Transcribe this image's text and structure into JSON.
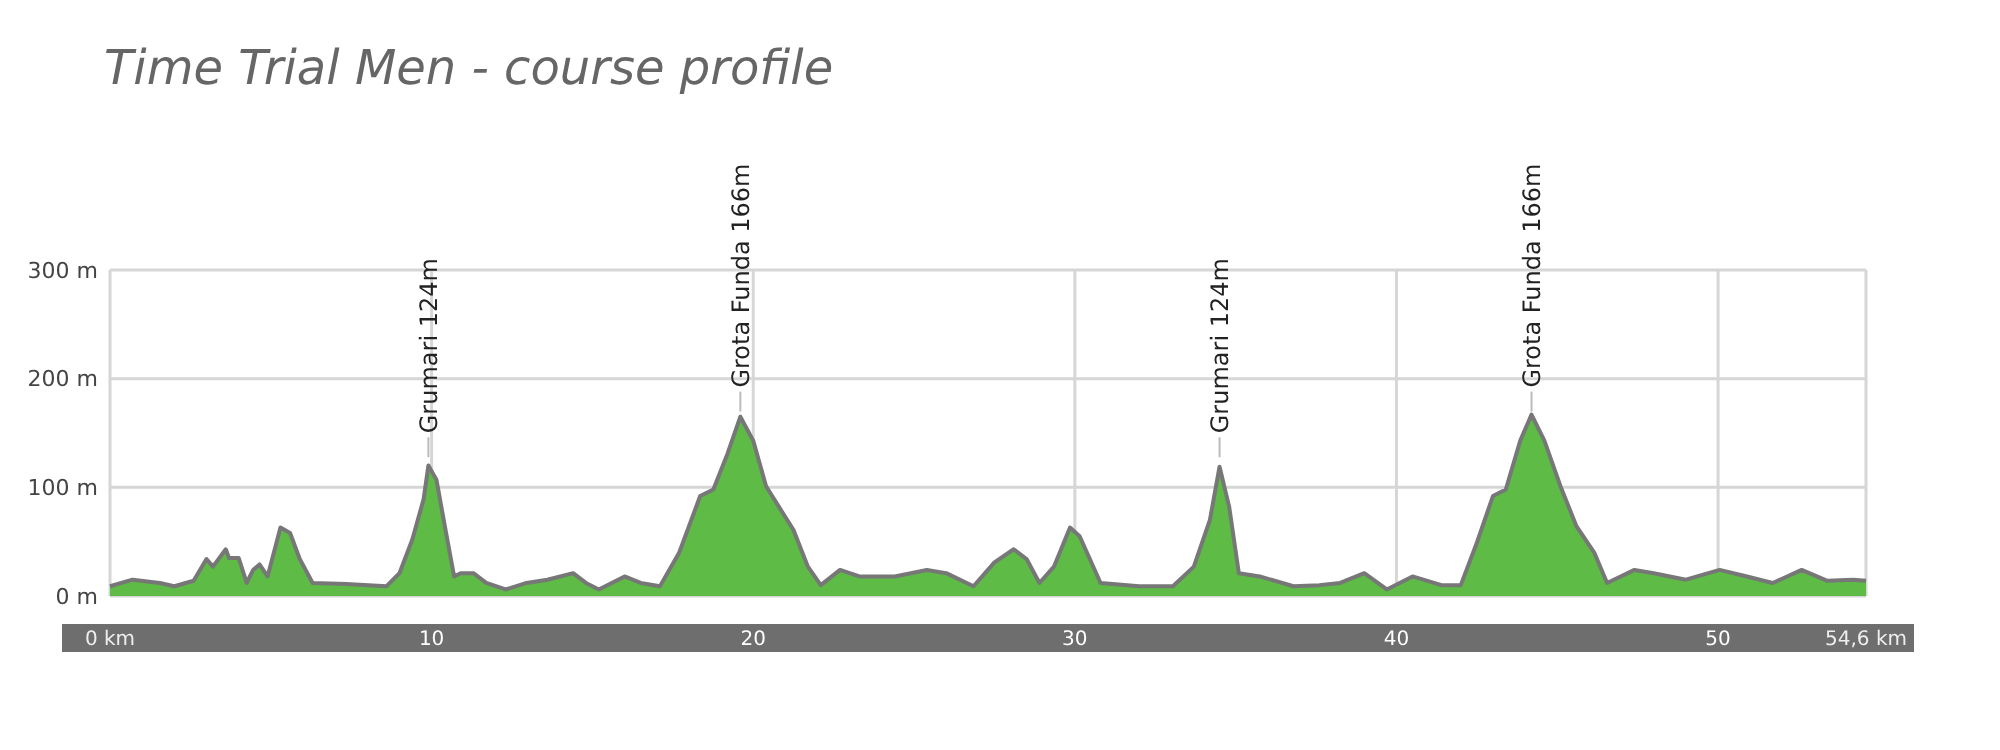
{
  "chart_data": {
    "type": "area",
    "title": "Time Trial Men - course profile",
    "x": [
      0,
      0.7,
      1.55,
      2.0,
      2.6,
      3.0,
      3.2,
      3.6,
      3.7,
      4.0,
      4.25,
      4.45,
      4.65,
      4.9,
      5.3,
      5.6,
      5.9,
      6.3,
      7.35,
      8.6,
      9.0,
      9.4,
      9.75,
      9.9,
      10.15,
      10.45,
      10.7,
      10.9,
      11.3,
      11.7,
      12.3,
      12.95,
      13.6,
      14.4,
      14.8,
      15.2,
      16.0,
      16.5,
      17.1,
      17.7,
      18.35,
      18.76,
      19.2,
      19.6,
      20.0,
      20.4,
      20.8,
      21.25,
      21.7,
      22.1,
      22.7,
      23.3,
      24.4,
      25.4,
      26.0,
      26.85,
      27.5,
      28.1,
      28.5,
      28.9,
      29.35,
      29.85,
      30.15,
      30.8,
      32.0,
      33.05,
      33.7,
      34.2,
      34.5,
      34.8,
      35.1,
      35.75,
      36.8,
      37.6,
      38.25,
      39.0,
      39.7,
      40.5,
      41.4,
      42.0,
      42.5,
      43.0,
      43.4,
      43.85,
      44.2,
      44.6,
      45.1,
      45.6,
      46.15,
      46.55,
      47.4,
      48.0,
      49.0,
      50.05,
      50.9,
      51.7,
      52.6,
      53.4,
      54.2,
      54.6
    ],
    "series": [
      {
        "color": "#5dbb46",
        "values": [
          9,
          15,
          12,
          9,
          14,
          34,
          27,
          43,
          35,
          35,
          12,
          24,
          29,
          18,
          63,
          58,
          34,
          12,
          11,
          9,
          21,
          52,
          89,
          120,
          107,
          58,
          18,
          21,
          21,
          12,
          6,
          12,
          15,
          21,
          12,
          6,
          18,
          12,
          9,
          40,
          92,
          98,
          131,
          165,
          143,
          101,
          82,
          61,
          27,
          10,
          24,
          18,
          18,
          24,
          21,
          9,
          31,
          43,
          34,
          12,
          27,
          63,
          55,
          12,
          9,
          9,
          27,
          70,
          119,
          82,
          21,
          18,
          9,
          10,
          12,
          21,
          6,
          18,
          10,
          10,
          49,
          92,
          98,
          143,
          167,
          143,
          101,
          64,
          40,
          12,
          24,
          21,
          15,
          24,
          18,
          12,
          24,
          14,
          15,
          14
        ]
      }
    ],
    "xlim": [
      0,
      54.6
    ],
    "xticks": [
      {
        "value": 0,
        "label": "0 km"
      },
      10,
      20,
      30,
      40,
      50,
      {
        "value": 54.6,
        "label": "54,6 km"
      }
    ],
    "ylim": [
      0,
      300
    ],
    "yticks": [
      {
        "value": 0,
        "label": "0 m"
      },
      {
        "value": 100,
        "label": "100 m"
      },
      {
        "value": 200,
        "label": "200 m"
      },
      {
        "value": 300,
        "label": "300 m"
      }
    ],
    "grid": true,
    "annotations": [
      {
        "text": "Grumari 124m",
        "x": 9.9,
        "y": 124
      },
      {
        "text": "Grota Funda 166m",
        "x": 19.6,
        "y": 166
      },
      {
        "text": "Grumari 124m",
        "x": 34.5,
        "y": 124
      },
      {
        "text": "Grota Funda 166m",
        "x": 44.2,
        "y": 166
      }
    ]
  }
}
